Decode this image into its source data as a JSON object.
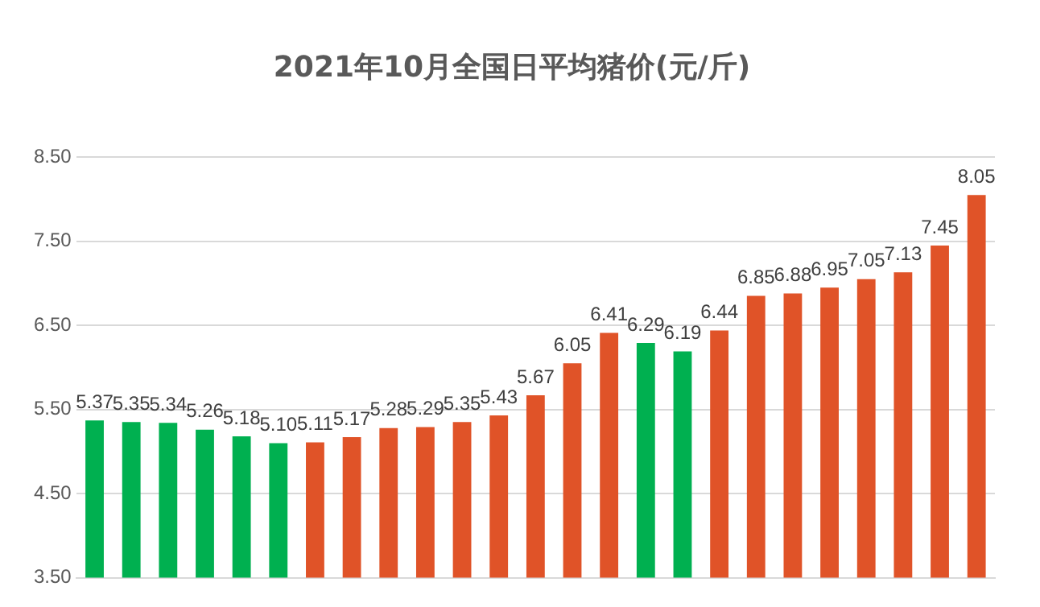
{
  "chart_data": {
    "type": "bar",
    "title": "2021年10月全国日平均猪价(元/斤)",
    "categories": [
      null,
      null,
      null,
      null,
      null,
      null,
      null,
      null,
      null,
      null,
      null,
      null,
      null,
      null,
      null,
      null,
      null,
      null,
      null,
      null,
      null,
      null,
      null,
      null,
      null
    ],
    "values": [
      5.37,
      5.35,
      5.34,
      5.26,
      5.18,
      5.1,
      5.11,
      5.17,
      5.28,
      5.29,
      5.35,
      5.43,
      5.67,
      6.05,
      6.41,
      6.29,
      6.19,
      6.44,
      6.85,
      6.88,
      6.95,
      7.05,
      7.13,
      7.45,
      8.05
    ],
    "value_labels": [
      "5.37",
      "5.35",
      "5.34",
      "5.26",
      "5.18",
      "5.10",
      "5.11",
      "5.17",
      "5.28",
      "5.29",
      "5.35",
      "5.43",
      "5.67",
      "6.05",
      "6.41",
      "6.29",
      "6.19",
      "6.44",
      "6.85",
      "6.88",
      "6.95",
      "7.05",
      "7.13",
      "7.45",
      "8.05"
    ],
    "colors": [
      "#00b050",
      "#00b050",
      "#00b050",
      "#00b050",
      "#00b050",
      "#00b050",
      "#e05328",
      "#e05328",
      "#e05328",
      "#e05328",
      "#e05328",
      "#e05328",
      "#e05328",
      "#e05328",
      "#e05328",
      "#00b050",
      "#00b050",
      "#e05328",
      "#e05328",
      "#e05328",
      "#e05328",
      "#e05328",
      "#e05328",
      "#e05328",
      "#e05328"
    ],
    "ylim": [
      3.5,
      8.5
    ],
    "yticks": [
      {
        "value": 3.5,
        "label": "3.50"
      },
      {
        "value": 4.5,
        "label": "4.50"
      },
      {
        "value": 5.5,
        "label": "5.50"
      },
      {
        "value": 6.5,
        "label": "6.50"
      },
      {
        "value": 7.5,
        "label": "7.50"
      },
      {
        "value": 8.5,
        "label": "8.50"
      }
    ],
    "grid": "y"
  }
}
